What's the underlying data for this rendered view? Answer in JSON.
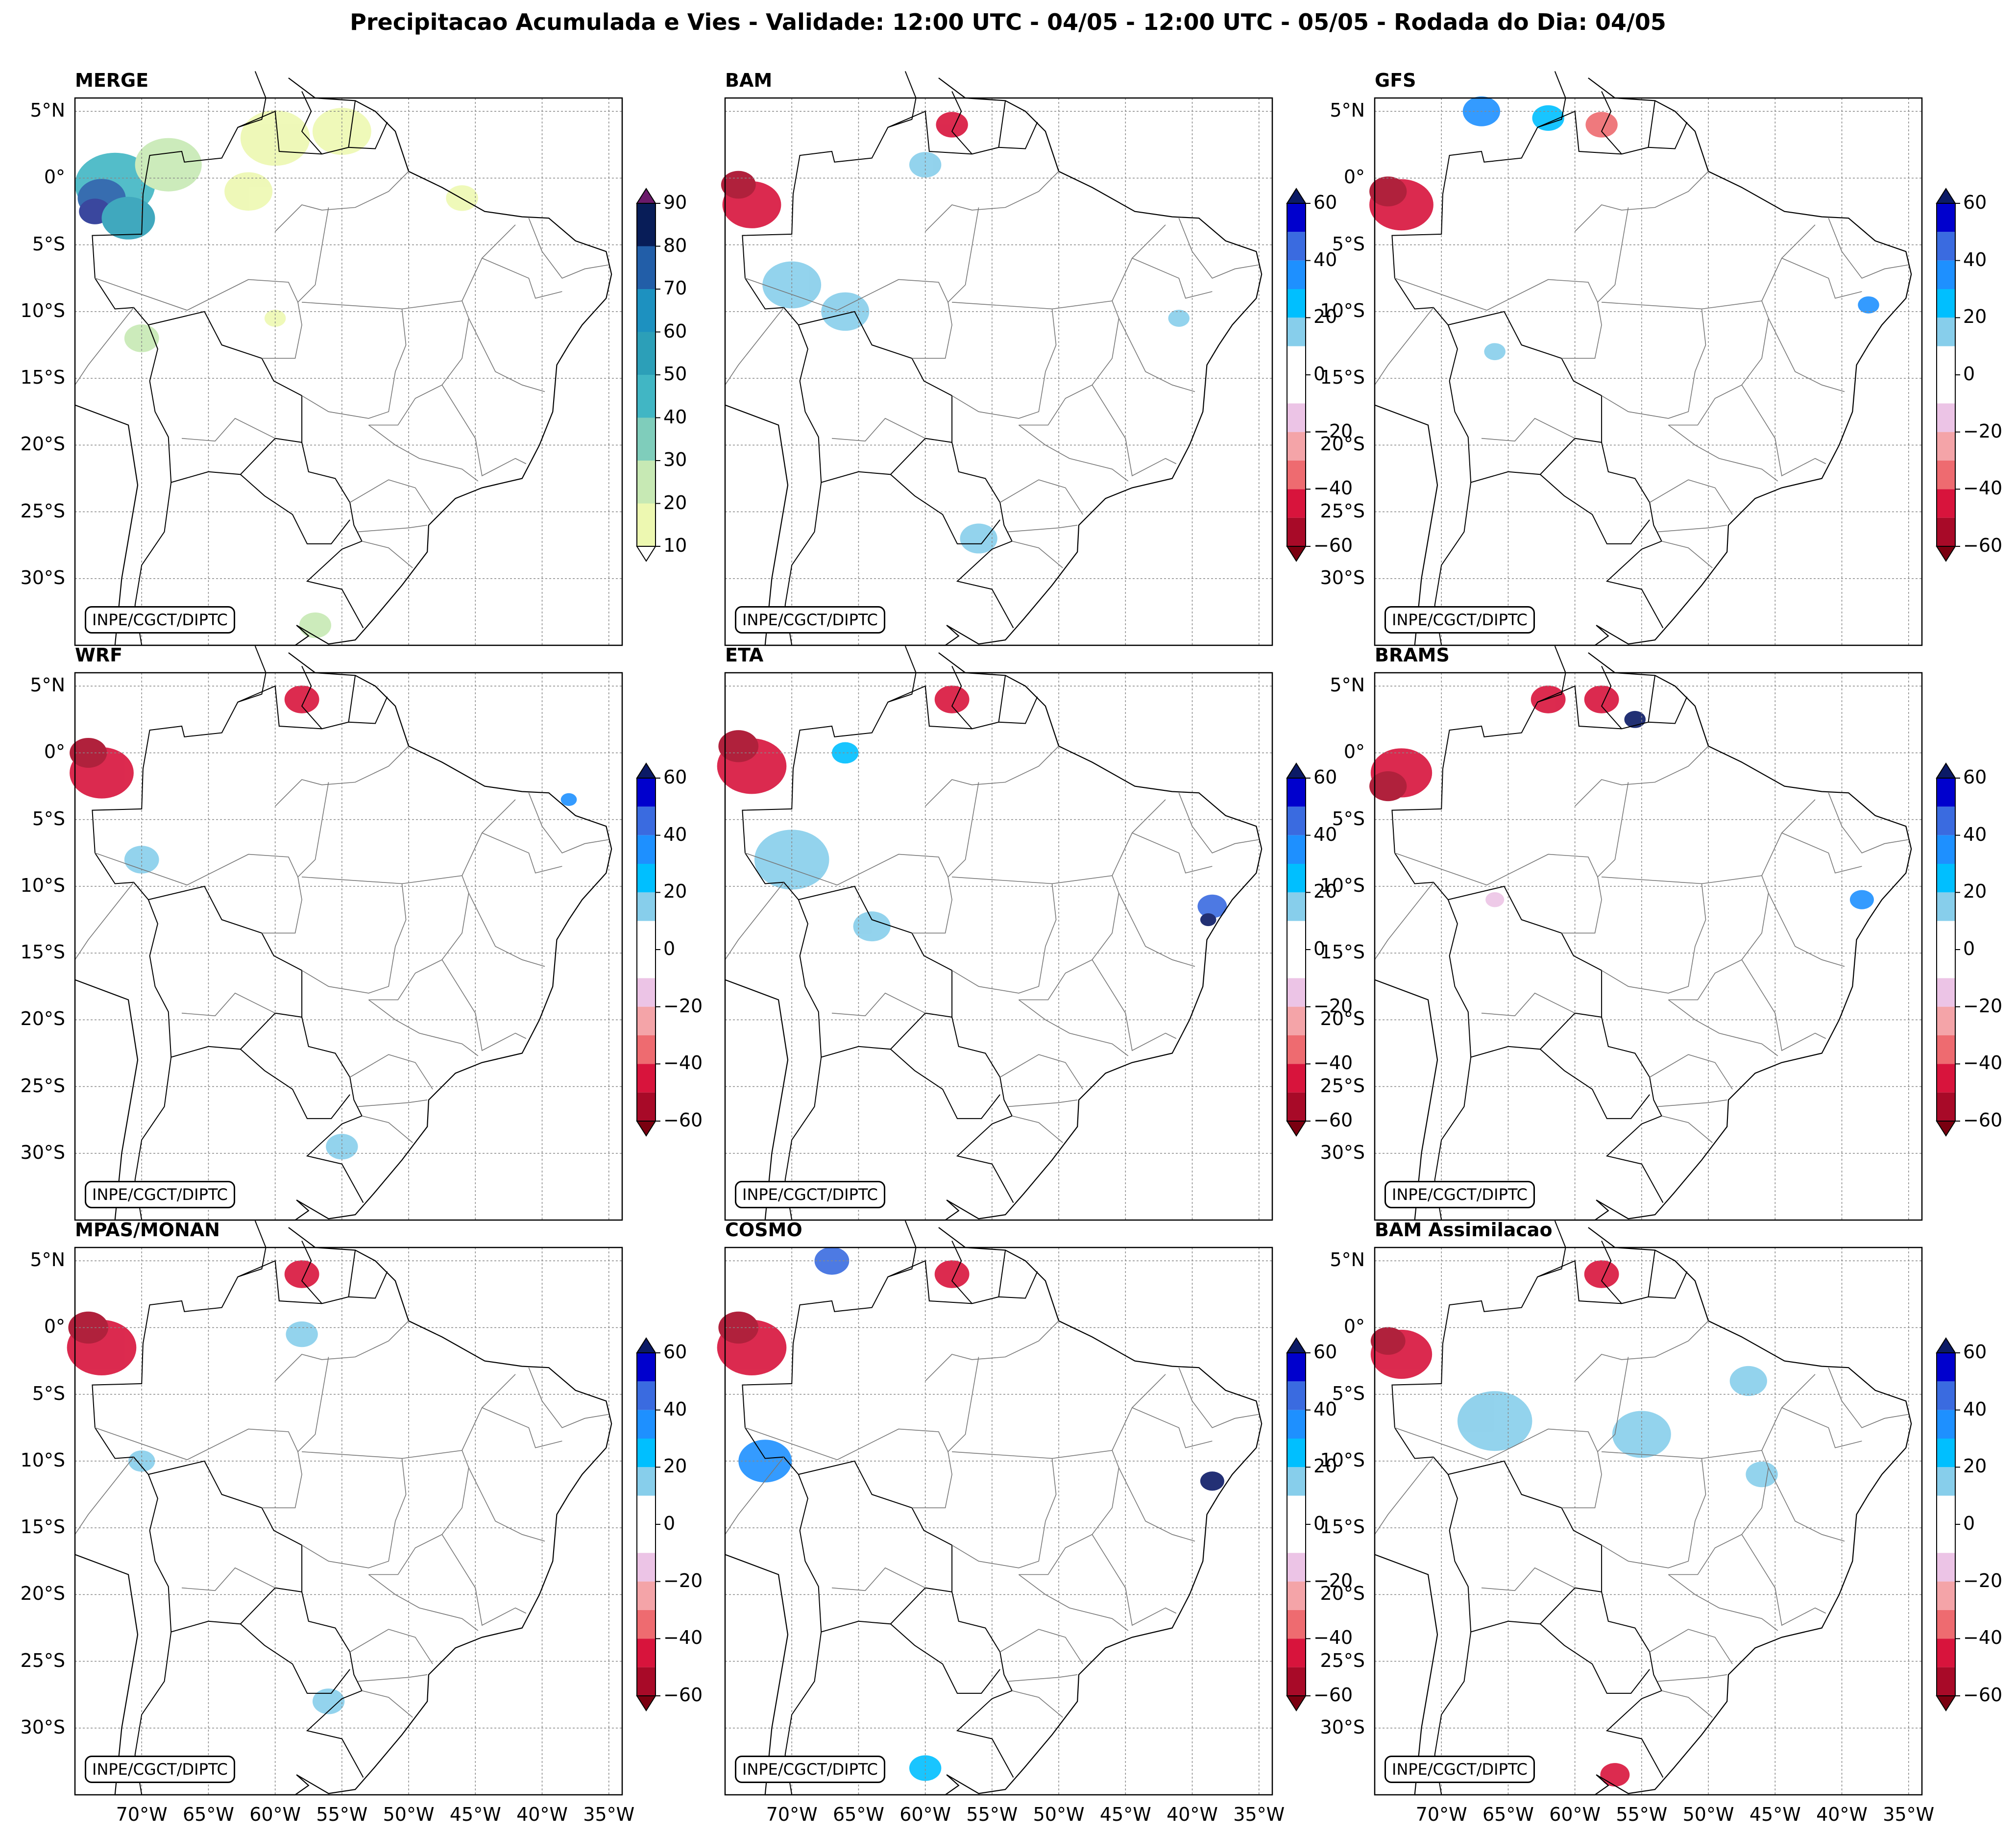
{
  "title": "Precipitacao Acumulada e Vies - Validade: 12:00 UTC - 04/05 - 12:00 UTC - 05/05 - Rodada do Dia: 04/05",
  "credit": "INPE/CGCT/DIPTC",
  "lat_ticks": [
    "5°N",
    "0°",
    "5°S",
    "10°S",
    "15°S",
    "20°S",
    "25°S",
    "30°S"
  ],
  "lon_ticks": [
    "70°W",
    "65°W",
    "60°W",
    "55°W",
    "50°W",
    "45°W",
    "40°W",
    "35°W"
  ],
  "precip_colorbar": {
    "ticks": [
      "90",
      "80",
      "70",
      "60",
      "50",
      "40",
      "30",
      "20",
      "10"
    ],
    "colors": [
      "#edf8b1",
      "#c7e9b4",
      "#7fcdbb",
      "#41b6c4",
      "#2c9fb8",
      "#1d91c0",
      "#225ea8",
      "#253494",
      "#081d58"
    ],
    "over_color": "#6a1a6a",
    "under_color": "#ffffff"
  },
  "bias_colorbar": {
    "ticks": [
      "60",
      "40",
      "20",
      "0",
      "−20",
      "−40",
      "−60"
    ],
    "colors_top_to_bottom": [
      "#0000cd",
      "#3a6be0",
      "#1e90ff",
      "#00bfff",
      "#87ceeb",
      "#ffffff",
      "#ffffff",
      "#ecc4e6",
      "#f4a4a8",
      "#ee6b70",
      "#d8143c",
      "#a80a28"
    ],
    "over_color": "#0b1a66",
    "under_color": "#7a0010"
  },
  "panels": [
    {
      "name": "MERGE",
      "type": "precip"
    },
    {
      "name": "BAM",
      "type": "bias"
    },
    {
      "name": "GFS",
      "type": "bias"
    },
    {
      "name": "WRF",
      "type": "bias"
    },
    {
      "name": "ETA",
      "type": "bias"
    },
    {
      "name": "BRAMS",
      "type": "bias"
    },
    {
      "name": "MPAS/MONAN",
      "type": "bias"
    },
    {
      "name": "COSMO",
      "type": "bias"
    },
    {
      "name": "BAM Assimilacao",
      "type": "bias"
    }
  ],
  "extra_lat_ticks_bam_assim": [
    "5°S",
    "10°S",
    "15°S",
    "20°S",
    "25°S",
    "30°S"
  ],
  "map_extent": {
    "lon_min": -75,
    "lon_max": -34,
    "lat_min": -35,
    "lat_max": 6
  }
}
